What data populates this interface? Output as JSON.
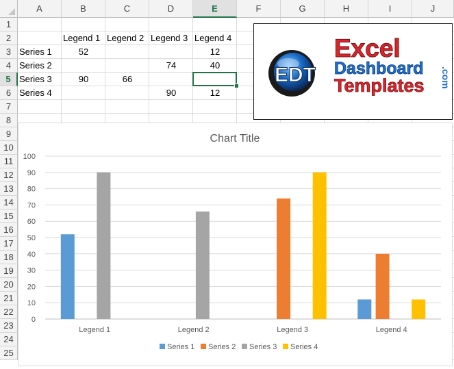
{
  "sheet": {
    "columns": [
      "A",
      "B",
      "C",
      "D",
      "E",
      "F",
      "G",
      "H",
      "I",
      "J"
    ],
    "selected_column": "E",
    "rows": [
      "1",
      "2",
      "3",
      "4",
      "5",
      "6",
      "7",
      "8",
      "9",
      "10",
      "11",
      "12",
      "13",
      "14",
      "15",
      "16",
      "17",
      "18",
      "19",
      "20",
      "21",
      "22",
      "23",
      "24",
      "25"
    ],
    "selected_row": "5",
    "header_row": [
      "Legend 1",
      "Legend 2",
      "Legend 3",
      "Legend 4"
    ],
    "data_rows": [
      {
        "label": "Series 1",
        "values": [
          "52",
          "",
          "",
          "12"
        ]
      },
      {
        "label": "Series 2",
        "values": [
          "",
          "",
          "74",
          "40"
        ]
      },
      {
        "label": "Series 3",
        "values": [
          "90",
          "66",
          "",
          ""
        ]
      },
      {
        "label": "Series 4",
        "values": [
          "",
          "",
          "90",
          "12"
        ]
      }
    ],
    "grid_color": "#dcdcdc",
    "accent_color": "#217346"
  },
  "logo": {
    "badge_letters": "EDT",
    "line1": "Excel",
    "line2": "Dashboard",
    "line3": "Templates",
    "suffix": ".com",
    "red": "#d8262d",
    "blue": "#1f6fd1"
  },
  "chart_data": {
    "type": "bar",
    "title": "Chart Title",
    "categories": [
      "Legend 1",
      "Legend 2",
      "Legend 3",
      "Legend 4"
    ],
    "series": [
      {
        "name": "Series 1",
        "color": "#5b9bd5",
        "values": [
          52,
          0,
          0,
          12
        ]
      },
      {
        "name": "Series 2",
        "color": "#ed7d31",
        "values": [
          0,
          0,
          74,
          40
        ]
      },
      {
        "name": "Series 3",
        "color": "#a5a5a5",
        "values": [
          90,
          66,
          0,
          0
        ]
      },
      {
        "name": "Series 4",
        "color": "#ffc000",
        "values": [
          0,
          0,
          90,
          12
        ]
      }
    ],
    "ylim": [
      0,
      100
    ],
    "yticks": [
      "0",
      "10",
      "20",
      "30",
      "40",
      "50",
      "60",
      "70",
      "80",
      "90",
      "100"
    ],
    "grid": true,
    "legend_position": "bottom"
  }
}
